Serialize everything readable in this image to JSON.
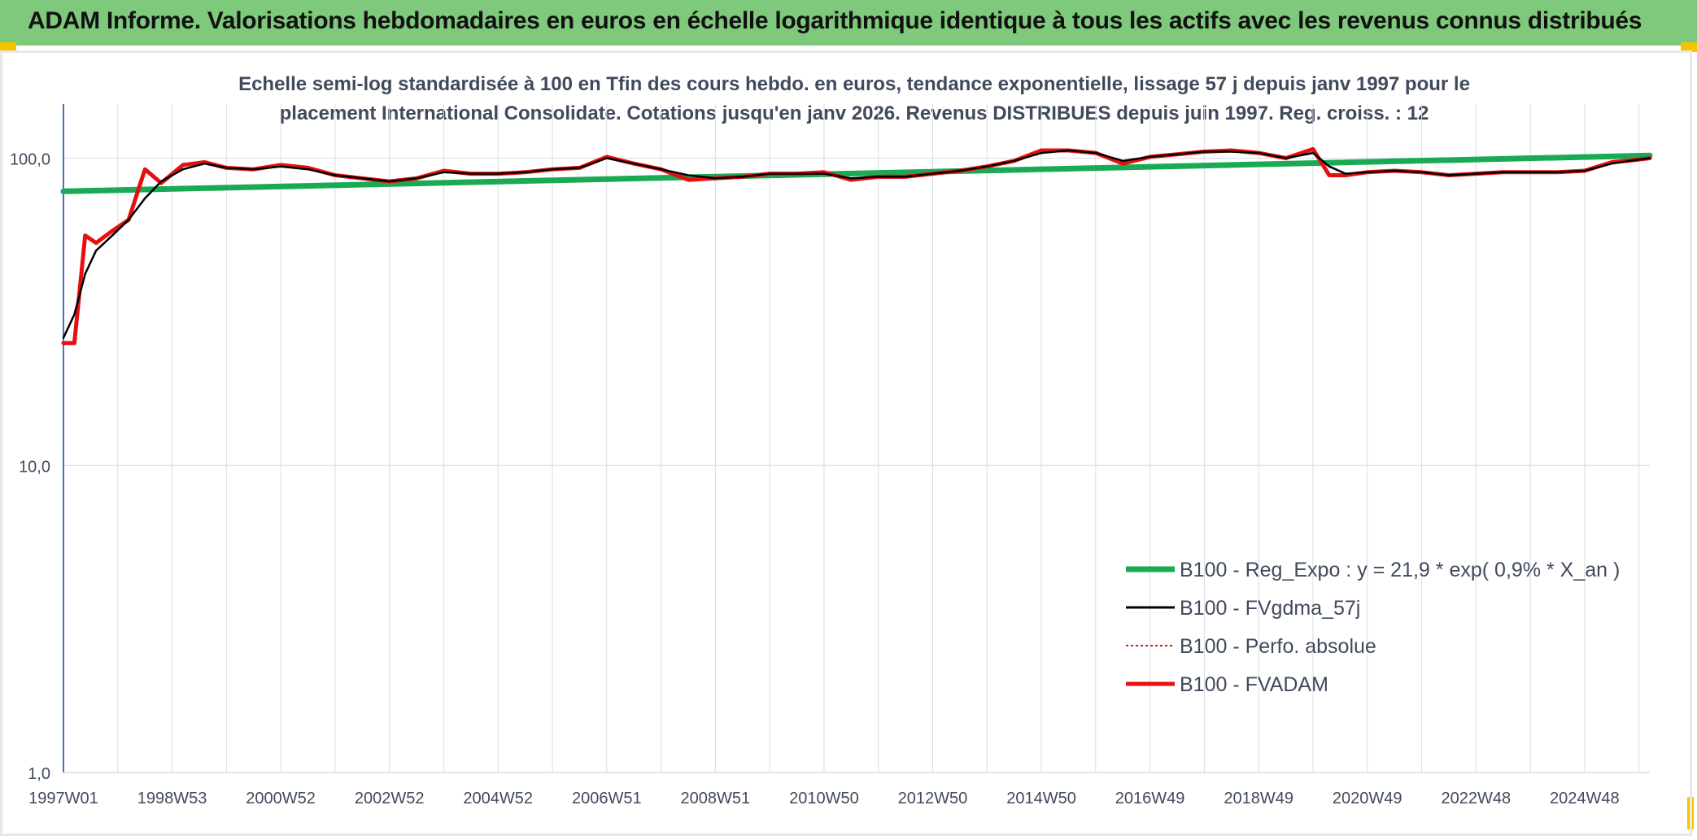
{
  "header": {
    "title": "ADAM Informe. Valorisations hebdomadaires en euros en échelle logarithmique identique à tous les actifs avec les revenus connus distribués"
  },
  "colors": {
    "header_bg": "#7fc97c",
    "corner_accent": "#f5c400",
    "reg_expo": "#1aaa55",
    "fvgdma": "#000000",
    "perfo": "#e01010",
    "fvadam": "#e81010",
    "axis": "#4472c4",
    "grid": "#d9dde3"
  },
  "chart_data": {
    "type": "line",
    "title_line1": "Echelle semi-log standardisée à 100 en Tfin des cours hebdo. en euros, tendance exponentielle, lissage 57 j depuis janv 1997 pour le",
    "title_line2": "placement International Consolidate. Cotations jusqu'en janv 2026. Revenus DISTRIBUES depuis juin 1997. Reg. croiss. : 12",
    "y_scale": "log",
    "ylim": [
      1,
      150
    ],
    "y_ticks": [
      "1,0",
      "10,0",
      "100,0"
    ],
    "y_tick_values": [
      1,
      10,
      100
    ],
    "xlim": [
      1997.0,
      2026.2
    ],
    "x_ticks": [
      "1997W01",
      "1998W53",
      "2000W52",
      "2002W52",
      "2004W52",
      "2006W51",
      "2008W51",
      "2010W50",
      "2012W50",
      "2014W50",
      "2016W49",
      "2018W49",
      "2020W49",
      "2022W48",
      "2024W48"
    ],
    "x_tick_values": [
      1997.0,
      1999.0,
      2001.0,
      2003.0,
      2005.0,
      2007.0,
      2009.0,
      2011.0,
      2013.0,
      2015.0,
      2017.0,
      2019.0,
      2021.0,
      2023.0,
      2025.0
    ],
    "legend_position": "bottom-right",
    "series": [
      {
        "name": "B100 - Reg_Expo : y = 21,9 * exp( 0,9% *  X_an )",
        "key": "reg",
        "style": "solid-thick",
        "x": [
          1997.0,
          2026.2
        ],
        "y": [
          78,
          102
        ]
      },
      {
        "name": "B100 - FVgdma_57j",
        "key": "gdma",
        "style": "solid-thin",
        "x": [
          1997.0,
          1997.2,
          1997.4,
          1997.6,
          1997.9,
          1998.2,
          1998.5,
          1998.8,
          1999.2,
          1999.6,
          2000.0,
          2000.5,
          2001.0,
          2001.5,
          2002.0,
          2002.5,
          2003.0,
          2003.5,
          2004.0,
          2004.5,
          2005.0,
          2005.5,
          2006.0,
          2006.5,
          2007.0,
          2007.5,
          2008.0,
          2008.5,
          2009.0,
          2009.5,
          2010.0,
          2010.5,
          2011.0,
          2011.5,
          2012.0,
          2012.5,
          2013.0,
          2013.5,
          2014.0,
          2014.5,
          2015.0,
          2015.5,
          2016.0,
          2016.5,
          2017.0,
          2017.5,
          2018.0,
          2018.5,
          2019.0,
          2019.5,
          2020.0,
          2020.3,
          2020.6,
          2021.0,
          2021.5,
          2022.0,
          2022.5,
          2023.0,
          2023.5,
          2024.0,
          2024.5,
          2025.0,
          2025.5,
          2026.0,
          2026.2
        ],
        "y": [
          26,
          31,
          42,
          50,
          56,
          63,
          74,
          84,
          92,
          96,
          93,
          92,
          94,
          92,
          88,
          86,
          84,
          86,
          90,
          89,
          89,
          90,
          92,
          93,
          100,
          96,
          92,
          88,
          86,
          87,
          89,
          89,
          89,
          86,
          87,
          87,
          89,
          91,
          94,
          98,
          104,
          106,
          104,
          98,
          101,
          103,
          105,
          105,
          104,
          100,
          104,
          94,
          89,
          90,
          91,
          90,
          88,
          89,
          90,
          90,
          90,
          91,
          96,
          99,
          100
        ]
      },
      {
        "name": "B100 - Perfo. absolue",
        "key": "perfo",
        "style": "dotted",
        "x": [
          1997.0,
          1997.2,
          1997.4,
          1997.6,
          1997.9,
          1998.2,
          1998.5,
          1998.8,
          1999.2,
          1999.6,
          2000.0,
          2000.5,
          2001.0,
          2001.5,
          2002.0,
          2002.5,
          2003.0,
          2003.5,
          2004.0,
          2004.5,
          2005.0,
          2005.5,
          2006.0,
          2006.5,
          2007.0,
          2007.5,
          2008.0,
          2008.5,
          2009.0,
          2009.5,
          2010.0,
          2010.5,
          2011.0,
          2011.5,
          2012.0,
          2012.5,
          2013.0,
          2013.5,
          2014.0,
          2014.5,
          2015.0,
          2015.5,
          2016.0,
          2016.5,
          2017.0,
          2017.5,
          2018.0,
          2018.5,
          2019.0,
          2019.5,
          2020.0,
          2020.3,
          2020.6,
          2021.0,
          2021.5,
          2022.0,
          2022.5,
          2023.0,
          2023.5,
          2024.0,
          2024.5,
          2025.0,
          2025.5,
          2026.0,
          2026.2
        ],
        "y": [
          25,
          25,
          56,
          53,
          58,
          63,
          92,
          83,
          95,
          97,
          93,
          92,
          95,
          93,
          88,
          86,
          84,
          86,
          91,
          89,
          89,
          90,
          92,
          93,
          101,
          96,
          92,
          85,
          86,
          87,
          89,
          89,
          90,
          85,
          87,
          87,
          89,
          91,
          94,
          98,
          106,
          106,
          104,
          96,
          101,
          103,
          105,
          106,
          104,
          100,
          107,
          88,
          88,
          90,
          91,
          90,
          88,
          89,
          90,
          90,
          90,
          91,
          97,
          99,
          100
        ]
      },
      {
        "name": "B100 - FVADAM",
        "key": "fvadam",
        "style": "solid-thick",
        "x": [
          1997.0,
          1997.2,
          1997.4,
          1997.6,
          1997.9,
          1998.2,
          1998.5,
          1998.8,
          1999.2,
          1999.6,
          2000.0,
          2000.5,
          2001.0,
          2001.5,
          2002.0,
          2002.5,
          2003.0,
          2003.5,
          2004.0,
          2004.5,
          2005.0,
          2005.5,
          2006.0,
          2006.5,
          2007.0,
          2007.5,
          2008.0,
          2008.5,
          2009.0,
          2009.5,
          2010.0,
          2010.5,
          2011.0,
          2011.5,
          2012.0,
          2012.5,
          2013.0,
          2013.5,
          2014.0,
          2014.5,
          2015.0,
          2015.5,
          2016.0,
          2016.5,
          2017.0,
          2017.5,
          2018.0,
          2018.5,
          2019.0,
          2019.5,
          2020.0,
          2020.3,
          2020.6,
          2021.0,
          2021.5,
          2022.0,
          2022.5,
          2023.0,
          2023.5,
          2024.0,
          2024.5,
          2025.0,
          2025.5,
          2026.0,
          2026.2
        ],
        "y": [
          25,
          25,
          56,
          53,
          58,
          63,
          92,
          83,
          95,
          97,
          93,
          92,
          95,
          93,
          88,
          86,
          84,
          86,
          91,
          89,
          89,
          90,
          92,
          93,
          101,
          96,
          92,
          85,
          86,
          87,
          89,
          89,
          90,
          85,
          87,
          87,
          89,
          91,
          94,
          98,
          106,
          106,
          104,
          96,
          101,
          103,
          105,
          106,
          104,
          100,
          107,
          88,
          88,
          90,
          91,
          90,
          88,
          89,
          90,
          90,
          90,
          91,
          97,
          99,
          100
        ]
      }
    ]
  }
}
